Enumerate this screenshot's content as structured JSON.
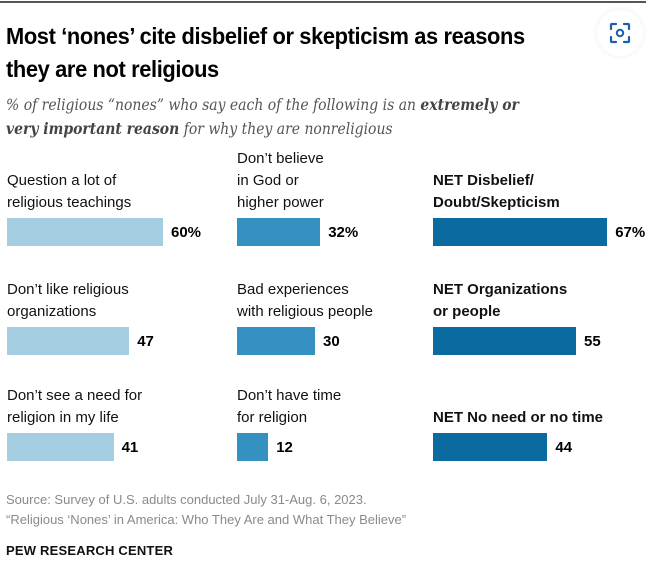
{
  "header": {
    "title_line1": "Most ‘nones’ cite disbelief or skepticism as reasons",
    "title_line2": "they are not religious",
    "subtitle_part1": "% of religious “nones” who say each of the following is an ",
    "subtitle_bold1": "extremely or",
    "subtitle_bold2": "very important reason",
    "subtitle_part2": " for why they are nonreligious"
  },
  "colors": {
    "light": "#a6cee3",
    "medium": "#3591c1",
    "dark": "#0b6aa0"
  },
  "icons": {
    "lens": "visual-search-icon"
  },
  "chart_data": {
    "type": "bar",
    "title": "Most ‘nones’ cite disbelief or skepticism as reasons they are not religious",
    "subtitle": "% of religious “nones” who say each of the following is an extremely or very important reason for why they are nonreligious",
    "xlim": [
      0,
      100
    ],
    "grid": false,
    "items": [
      {
        "row": 0,
        "col": 0,
        "label": [
          "Question a lot of",
          "religious teachings"
        ],
        "value": 60,
        "display": "60%",
        "net": false,
        "shade": "light"
      },
      {
        "row": 0,
        "col": 1,
        "label": [
          "Don’t believe",
          "in God or",
          "higher power"
        ],
        "value": 32,
        "display": "32%",
        "net": false,
        "shade": "medium"
      },
      {
        "row": 0,
        "col": 2,
        "label": [
          "NET Disbelief/",
          "Doubt/Skepticism"
        ],
        "value": 67,
        "display": "67%",
        "net": true,
        "shade": "dark"
      },
      {
        "row": 1,
        "col": 0,
        "label": [
          "Don’t like religious",
          "organizations"
        ],
        "value": 47,
        "display": "47",
        "net": false,
        "shade": "light"
      },
      {
        "row": 1,
        "col": 1,
        "label": [
          "Bad experiences",
          "with religious people"
        ],
        "value": 30,
        "display": "30",
        "net": false,
        "shade": "medium"
      },
      {
        "row": 1,
        "col": 2,
        "label": [
          "NET Organizations",
          "or people"
        ],
        "value": 55,
        "display": "55",
        "net": true,
        "shade": "dark"
      },
      {
        "row": 2,
        "col": 0,
        "label": [
          "Don’t see a need for",
          "religion in my life"
        ],
        "value": 41,
        "display": "41",
        "net": false,
        "shade": "light"
      },
      {
        "row": 2,
        "col": 1,
        "label": [
          "Don’t have time",
          "for religion"
        ],
        "value": 12,
        "display": "12",
        "net": false,
        "shade": "medium"
      },
      {
        "row": 2,
        "col": 2,
        "label": [
          "NET No need or no time"
        ],
        "value": 44,
        "display": "44",
        "net": true,
        "shade": "dark"
      }
    ]
  },
  "footer": {
    "source_line1": "Source: Survey of U.S. adults conducted July 31-Aug. 6, 2023.",
    "source_line2": "“Religious ‘Nones’ in America: Who They Are and What They Believe”",
    "brand": "PEW RESEARCH CENTER"
  }
}
